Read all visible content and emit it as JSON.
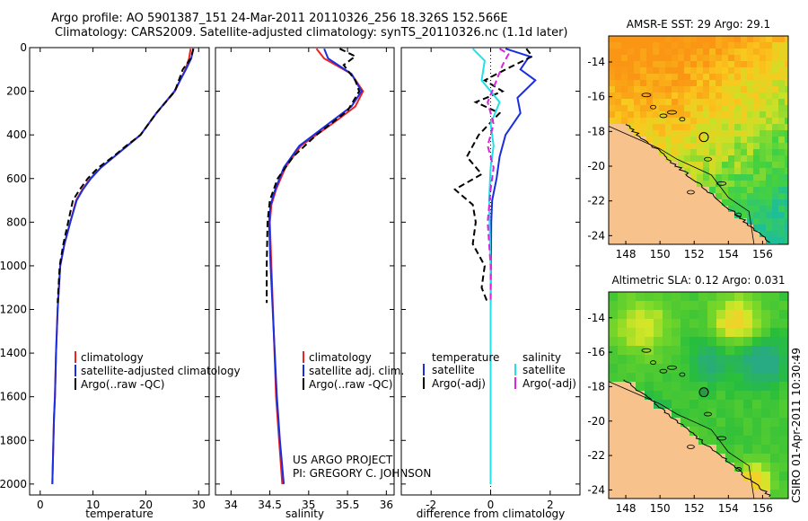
{
  "header": {
    "line1": "Argo profile: AO 5901387_151 24-Mar-2011 20110326_256 18.326S 152.566E",
    "line2": "Climatology: CARS2009. Satellite-adjusted climatology: synTS_20110326.nc (1.1d later)"
  },
  "footer": {
    "project": "US ARGO PROJECT",
    "pi": "PI: GREGORY C. JOHNSON",
    "stamp": "CSIRO 01-Apr-2011 10:30:49"
  },
  "colors": {
    "red": "#ee2222",
    "blue": "#1a2ee0",
    "black": "#000000",
    "cyan": "#22e0e8",
    "magenta": "#dd22dd",
    "land": "#f7c28c"
  },
  "chart_data": [
    {
      "type": "line",
      "name": "temperature",
      "xlabel": "temperature",
      "ylabel": "",
      "xlim": [
        -2,
        32
      ],
      "ylim": [
        2050,
        0
      ],
      "xticks": [
        0,
        10,
        20,
        30
      ],
      "yticks": [
        0,
        200,
        400,
        600,
        800,
        1000,
        1200,
        1400,
        1600,
        1800,
        2000
      ],
      "legend": [
        "climatology",
        "satellite-adjusted climatology",
        "Argo(..raw -QC)"
      ],
      "series": [
        {
          "name": "climatology",
          "color": "red",
          "dash": "solid",
          "x": [
            28.5,
            28.2,
            27.5,
            25.5,
            22.0,
            19.0,
            16.5,
            14.0,
            11.5,
            9.5,
            8.0,
            6.8,
            5.7,
            4.6,
            3.8,
            3.3,
            3.0,
            2.8,
            2.6,
            2.5,
            2.3
          ],
          "y": [
            5,
            50,
            100,
            200,
            300,
            400,
            450,
            500,
            550,
            600,
            650,
            700,
            800,
            900,
            1000,
            1200,
            1400,
            1600,
            1700,
            1800,
            2000
          ]
        },
        {
          "name": "satellite-adjusted climatology",
          "color": "blue",
          "dash": "solid",
          "x": [
            29.0,
            28.6,
            27.6,
            25.4,
            22.0,
            19.0,
            16.5,
            14.0,
            11.5,
            9.6,
            8.1,
            6.9,
            5.7,
            4.6,
            3.8,
            3.3,
            3.0,
            2.8,
            2.6,
            2.5,
            2.3
          ],
          "y": [
            5,
            50,
            100,
            200,
            300,
            400,
            450,
            500,
            550,
            600,
            650,
            700,
            800,
            900,
            1000,
            1200,
            1400,
            1600,
            1700,
            1800,
            2000
          ]
        },
        {
          "name": "Argo(..raw -QC)",
          "color": "black",
          "dash": "dashed",
          "x": [
            29.0,
            28.5,
            27.0,
            25.5,
            22.0,
            19.0,
            16.3,
            13.8,
            11.0,
            9.0,
            7.5,
            6.2,
            5.3,
            4.4,
            3.7,
            3.3
          ],
          "y": [
            5,
            50,
            100,
            200,
            300,
            400,
            450,
            500,
            550,
            600,
            650,
            700,
            800,
            900,
            1000,
            1170
          ]
        }
      ]
    },
    {
      "type": "line",
      "name": "salinity",
      "xlabel": "salinity",
      "xlim": [
        33.8,
        36.1
      ],
      "ylim": [
        2050,
        0
      ],
      "xticks": [
        34,
        34.5,
        35,
        35.5,
        36
      ],
      "yticks": [
        0,
        200,
        400,
        600,
        800,
        1000,
        1200,
        1400,
        1600,
        1800,
        2000
      ],
      "legend": [
        "climatology",
        "satellite adj. clim.",
        "Argo(..raw -QC)"
      ],
      "series": [
        {
          "name": "climatology",
          "color": "red",
          "dash": "solid",
          "x": [
            35.1,
            35.2,
            35.55,
            35.7,
            35.6,
            35.3,
            34.9,
            34.7,
            34.58,
            34.52,
            34.5,
            34.52,
            34.55,
            34.58,
            34.62,
            34.66
          ],
          "y": [
            5,
            50,
            120,
            200,
            270,
            350,
            450,
            550,
            650,
            720,
            800,
            1000,
            1300,
            1600,
            1800,
            2000
          ]
        },
        {
          "name": "satellite adj. clim.",
          "color": "blue",
          "dash": "solid",
          "x": [
            35.2,
            35.25,
            35.55,
            35.68,
            35.55,
            35.25,
            34.88,
            34.68,
            34.57,
            34.51,
            34.49,
            34.51,
            34.55,
            34.59,
            34.63,
            34.68
          ],
          "y": [
            5,
            50,
            120,
            200,
            270,
            350,
            450,
            550,
            650,
            720,
            800,
            1000,
            1300,
            1600,
            1800,
            2000
          ]
        },
        {
          "name": "Argo(..raw -QC)",
          "color": "black",
          "dash": "dashed",
          "x": [
            35.4,
            35.6,
            35.45,
            35.6,
            35.65,
            35.5,
            35.1,
            34.8,
            34.6,
            34.5,
            34.47,
            34.46,
            34.46
          ],
          "y": [
            5,
            40,
            80,
            150,
            200,
            290,
            400,
            500,
            600,
            700,
            800,
            1000,
            1170
          ]
        }
      ]
    },
    {
      "type": "line",
      "name": "difference",
      "xlabel": "difference from climatology",
      "xlim": [
        -3,
        3
      ],
      "ylim": [
        2050,
        0
      ],
      "xticks": [
        -2,
        0,
        2
      ],
      "yticks": [
        0,
        200,
        400,
        600,
        800,
        1000,
        1200,
        1400,
        1600,
        1800,
        2000
      ],
      "legend_temperature_title": "temperature",
      "legend_salinity_title": "salinity",
      "legend_temperature": [
        "satellite",
        "Argo(-adj)"
      ],
      "legend_salinity": [
        "satellite",
        "Argo(-adj)"
      ],
      "series": [
        {
          "name": "temperature satellite",
          "color": "blue",
          "dash": "solid",
          "x": [
            0.5,
            1.3,
            1.0,
            1.5,
            0.9,
            1.0,
            0.5,
            0.3,
            0.2,
            0.05,
            0.02,
            0.0,
            0.0
          ],
          "y": [
            5,
            40,
            100,
            150,
            230,
            300,
            400,
            500,
            600,
            700,
            800,
            1200,
            2000
          ]
        },
        {
          "name": "temperature Argo(-adj)",
          "color": "black",
          "dash": "dashed",
          "x": [
            1.2,
            1.4,
            0.5,
            -0.2,
            0.4,
            -0.5,
            0.3,
            -0.4,
            -0.8,
            -0.3,
            -1.2,
            -0.6,
            -0.5,
            -0.6,
            -0.2,
            -0.3,
            -0.1
          ],
          "y": [
            5,
            40,
            100,
            150,
            200,
            250,
            300,
            400,
            500,
            580,
            650,
            720,
            800,
            900,
            1000,
            1100,
            1170
          ]
        },
        {
          "name": "salinity satellite",
          "color": "cyan",
          "dash": "solid",
          "x": [
            -0.6,
            -0.2,
            -0.3,
            0.3,
            0.0,
            0.1,
            0.0,
            -0.05,
            0.0,
            0.0
          ],
          "y": [
            5,
            60,
            150,
            250,
            350,
            450,
            550,
            700,
            1000,
            2000
          ]
        },
        {
          "name": "salinity Argo(-adj)",
          "color": "magenta",
          "dash": "dashed",
          "x": [
            0.3,
            0.6,
            0.4,
            0.2,
            -0.1,
            0.1,
            -0.1,
            0.1,
            0.0,
            -0.1,
            0.0,
            0.0
          ],
          "y": [
            5,
            30,
            80,
            150,
            250,
            350,
            450,
            550,
            650,
            800,
            1000,
            1170
          ]
        }
      ]
    },
    {
      "type": "heatmap",
      "name": "sst-map",
      "title": "AMSR-E SST: 29 Argo: 29.1",
      "xlim": [
        147,
        157.5
      ],
      "ylim": [
        -24.5,
        -12.5
      ],
      "xticks": [
        148,
        150,
        152,
        154,
        156
      ],
      "yticks": [
        -14,
        -16,
        -18,
        -20,
        -22,
        -24
      ],
      "float_position": [
        152.566,
        -18.326
      ]
    },
    {
      "type": "heatmap",
      "name": "sla-map",
      "title": "Altimetric SLA: 0.12 Argo: 0.031",
      "xlim": [
        147,
        157.5
      ],
      "ylim": [
        -24.5,
        -12.5
      ],
      "xticks": [
        148,
        150,
        152,
        154,
        156
      ],
      "yticks": [
        -14,
        -16,
        -18,
        -20,
        -22,
        -24
      ],
      "float_position": [
        152.566,
        -18.326
      ]
    }
  ]
}
